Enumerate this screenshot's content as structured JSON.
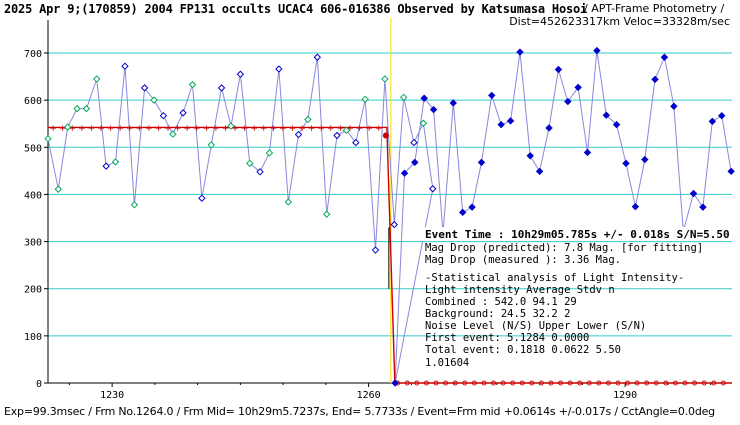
{
  "header": {
    "title": "2025 Apr 9;(170859) 2004 FP131 occults UCAC4 606-016386 Observed by Katsumasa Hosoi",
    "right": "/ APT-Frame Photometry /",
    "dist": "Dist=452623317km Veloc=33328m/sec"
  },
  "footer": "Exp=99.3msec / Frm No.1264.0 / Frm Mid= 10h29m5.7237s, End= 5.7733s / Event=Frm mid +0.0614s +/-0.017s / CctAngle=0.0deg",
  "stats": {
    "event_time": "Event Time : 10h29m05.785s  +/- 0.018s  S/N=5.50",
    "mag_pred": "Mag Drop (predicted):  7.8   Mag. [for fitting]",
    "mag_meas": "Mag Drop (measured ):  3.36  Mag.",
    "analysis_title": "-Statistical analysis of Light Intensity-",
    "hdr1": "Light intensity     Average   Stdv     n",
    "combined": "  Combined  :       542.0    94.1    29",
    "background": "  Background:        24.5    32.2     2",
    "noise_hdr": "Noise Level (N/S)   Upper    Lower   (S/N)",
    "first": "  First event:      5.1284   0.0000",
    "total": "  Total event:      0.1818   0.0622   5.50",
    "value": "1.01604"
  },
  "chart_data": {
    "type": "line",
    "xlim": [
      1222.5,
      1302.5
    ],
    "ylim": [
      0,
      770
    ],
    "x_ticks": [
      1230,
      1260,
      1290
    ],
    "y_ticks": [
      0,
      100,
      200,
      300,
      400,
      500,
      600,
      700
    ],
    "grid": "horizontal",
    "event_frame": 1262.6,
    "colors": {
      "series": "#0000cc",
      "line": "#8888dd",
      "fit_points": "#00aa55",
      "model": "#cc0000",
      "event_line": "#ffdd00",
      "grid": "#33cccc"
    },
    "series": [
      {
        "x": 1222,
        "y": 518
      },
      {
        "x": 1224,
        "y": 411
      },
      {
        "x": 1226,
        "y": 543
      },
      {
        "x": 1228,
        "y": 582
      },
      {
        "x": 1230,
        "y": 582
      },
      {
        "x": 1232,
        "y": 645
      },
      {
        "x": 1234,
        "y": 460
      },
      {
        "x": 1236,
        "y": 469
      },
      {
        "x": 1238,
        "y": 672
      },
      {
        "x": 1240,
        "y": 378
      },
      {
        "x": 1242,
        "y": 626
      },
      {
        "x": 1244,
        "y": 600
      },
      {
        "x": 1246,
        "y": 567
      },
      {
        "x": 1248,
        "y": 528
      },
      {
        "x": 1250,
        "y": 573
      },
      {
        "x": 1252,
        "y": 633
      },
      {
        "x": 1254,
        "y": 392
      },
      {
        "x": 1256,
        "y": 505
      },
      {
        "x": 1258,
        "y": 626
      },
      {
        "x": 1260,
        "y": 545
      },
      {
        "x": 1262,
        "y": 655
      },
      {
        "x": 1264,
        "y": 466
      },
      {
        "x": 1266,
        "y": 448
      },
      {
        "x": 1268,
        "y": 488
      },
      {
        "x": 1270,
        "y": 666
      },
      {
        "x": 1272,
        "y": 384
      },
      {
        "x": 1274,
        "y": 527
      },
      {
        "x": 1276,
        "y": 559
      },
      {
        "x": 1278,
        "y": 691
      },
      {
        "x": 1280,
        "y": 358
      },
      {
        "x": 1282,
        "y": 525
      },
      {
        "x": 1284,
        "y": 536
      },
      {
        "x": 1286,
        "y": 510
      },
      {
        "x": 1288,
        "y": 602
      },
      {
        "x": 1290,
        "y": 282
      },
      {
        "x": 1292,
        "y": 645
      },
      {
        "x": 1294,
        "y": 336
      },
      {
        "x": 1296,
        "y": 606
      },
      {
        "x": 1298,
        "y": 510
      },
      {
        "x": 1300,
        "y": 551
      },
      {
        "x": 1302,
        "y": 412
      }
    ],
    "points": [
      {
        "x": 1222.5,
        "y": 518
      },
      {
        "x": 1223.7,
        "y": 411
      },
      {
        "x": 1224.8,
        "y": 543
      },
      {
        "x": 1225.9,
        "y": 582
      },
      {
        "x": 1227.0,
        "y": 582
      },
      {
        "x": 1228.2,
        "y": 645
      },
      {
        "x": 1229.3,
        "y": 460
      },
      {
        "x": 1230.4,
        "y": 469
      },
      {
        "x": 1231.5,
        "y": 672
      },
      {
        "x": 1232.6,
        "y": 378
      },
      {
        "x": 1233.8,
        "y": 626
      },
      {
        "x": 1234.9,
        "y": 600
      },
      {
        "x": 1236.0,
        "y": 567
      },
      {
        "x": 1237.1,
        "y": 528
      },
      {
        "x": 1238.3,
        "y": 573
      },
      {
        "x": 1239.4,
        "y": 633
      },
      {
        "x": 1240.5,
        "y": 392
      },
      {
        "x": 1241.6,
        "y": 505
      },
      {
        "x": 1242.8,
        "y": 626
      },
      {
        "x": 1243.9,
        "y": 545
      },
      {
        "x": 1245.0,
        "y": 655
      },
      {
        "x": 1246.1,
        "y": 466
      },
      {
        "x": 1247.3,
        "y": 448
      },
      {
        "x": 1248.4,
        "y": 488
      },
      {
        "x": 1249.5,
        "y": 666
      },
      {
        "x": 1250.6,
        "y": 384
      },
      {
        "x": 1251.8,
        "y": 527
      },
      {
        "x": 1252.9,
        "y": 559
      },
      {
        "x": 1254.0,
        "y": 691
      },
      {
        "x": 1255.1,
        "y": 358
      },
      {
        "x": 1256.3,
        "y": 525
      },
      {
        "x": 1257.4,
        "y": 536
      },
      {
        "x": 1258.5,
        "y": 510
      },
      {
        "x": 1259.6,
        "y": 602
      },
      {
        "x": 1260.8,
        "y": 282
      },
      {
        "x": 1261.9,
        "y": 645
      },
      {
        "x": 1263.0,
        "y": 336
      },
      {
        "x": 1264.1,
        "y": 606
      },
      {
        "x": 1265.3,
        "y": 510
      },
      {
        "x": 1266.4,
        "y": 551
      },
      {
        "x": 1267.5,
        "y": 412
      }
    ],
    "after": [
      {
        "x": 1263.1,
        "y": 0
      },
      {
        "x": 1264.2,
        "y": 445
      },
      {
        "x": 1265.4,
        "y": 468
      },
      {
        "x": 1266.5,
        "y": 604
      },
      {
        "x": 1267.6,
        "y": 580
      },
      {
        "x": 1268.7,
        "y": 318
      },
      {
        "x": 1269.9,
        "y": 594
      },
      {
        "x": 1271.0,
        "y": 362
      },
      {
        "x": 1272.1,
        "y": 373
      },
      {
        "x": 1273.2,
        "y": 468
      },
      {
        "x": 1274.4,
        "y": 610
      },
      {
        "x": 1275.5,
        "y": 548
      },
      {
        "x": 1276.6,
        "y": 556
      },
      {
        "x": 1277.7,
        "y": 702
      },
      {
        "x": 1278.9,
        "y": 482
      },
      {
        "x": 1280.0,
        "y": 449
      },
      {
        "x": 1281.1,
        "y": 541
      },
      {
        "x": 1282.2,
        "y": 665
      },
      {
        "x": 1283.3,
        "y": 597
      },
      {
        "x": 1284.5,
        "y": 627
      },
      {
        "x": 1285.6,
        "y": 489
      },
      {
        "x": 1286.7,
        "y": 705
      },
      {
        "x": 1287.8,
        "y": 568
      },
      {
        "x": 1289.0,
        "y": 548
      },
      {
        "x": 1290.1,
        "y": 466
      },
      {
        "x": 1291.2,
        "y": 374
      },
      {
        "x": 1292.3,
        "y": 474
      },
      {
        "x": 1293.5,
        "y": 644
      },
      {
        "x": 1294.6,
        "y": 691
      },
      {
        "x": 1295.7,
        "y": 587
      },
      {
        "x": 1296.8,
        "y": 322
      },
      {
        "x": 1298.0,
        "y": 402
      },
      {
        "x": 1299.1,
        "y": 373
      },
      {
        "x": 1300.2,
        "y": 555
      },
      {
        "x": 1301.3,
        "y": 567
      },
      {
        "x": 1302.4,
        "y": 449
      }
    ]
  }
}
